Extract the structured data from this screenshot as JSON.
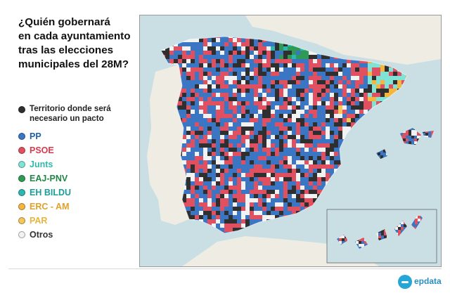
{
  "title": "¿Quién gobernará\nen cada ayuntamiento\ntras las elecciones\nmunicipales del 28M?",
  "pact_note": {
    "label": "Territorio donde será\nnecesario un pacto",
    "color": "#2f2f2f"
  },
  "legend": [
    {
      "label": "PP",
      "color": "#3b76c4",
      "text_color": "#1e5fae"
    },
    {
      "label": "PSOE",
      "color": "#e05060",
      "text_color": "#d83a4c"
    },
    {
      "label": "Junts",
      "color": "#7fe3d6",
      "text_color": "#2fb9aa"
    },
    {
      "label": "EAJ-PNV",
      "color": "#2e9a56",
      "text_color": "#238548"
    },
    {
      "label": "EH BILDU",
      "color": "#2cb7b3",
      "text_color": "#1a9e9a"
    },
    {
      "label": "ERC - AM",
      "color": "#f5b640",
      "text_color": "#e3a12a"
    },
    {
      "label": "PAR",
      "color": "#f3c75a",
      "text_color": "#e5b63d"
    },
    {
      "label": "Otros",
      "color": "#f2f2f2",
      "text_color": "#333333"
    }
  ],
  "colors": {
    "sea": "#c9dfe4",
    "neighbor_land": "#efece4",
    "pact": "#2f2f2f",
    "pp": "#3b76c4",
    "psoe": "#e05060"
  },
  "brand": {
    "name": "epdata",
    "color": "#25a6d6"
  }
}
